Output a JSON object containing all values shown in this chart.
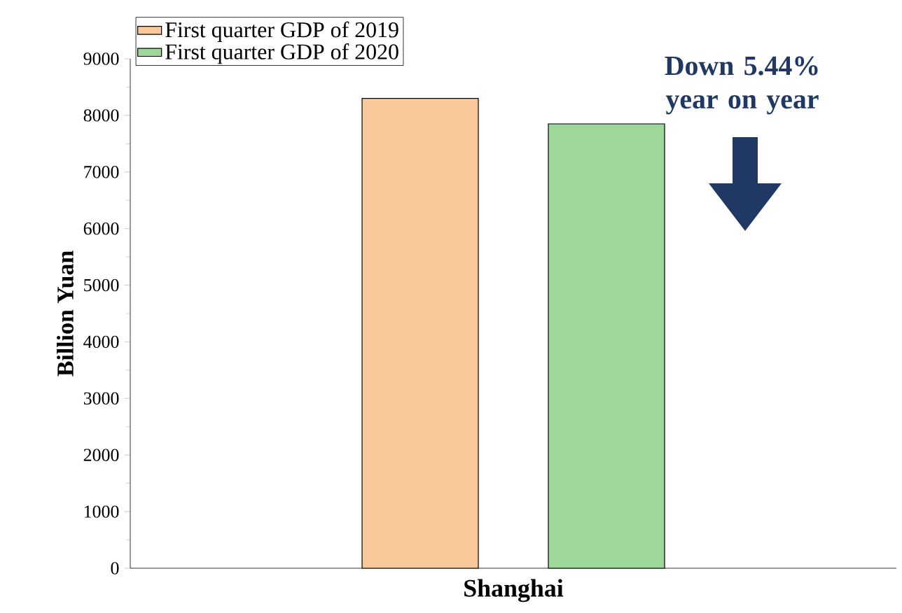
{
  "chart_data": {
    "type": "bar",
    "ylabel": "Billion Yuan",
    "categories": [
      "Shanghai"
    ],
    "series": [
      {
        "name": "First quarter GDP of 2019",
        "color": "#f9c89b",
        "values": [
          8300
        ]
      },
      {
        "name": "First quarter GDP of 2020",
        "color": "#9dd89a",
        "values": [
          7850
        ]
      }
    ],
    "ylim": [
      0,
      9000
    ],
    "yticks": [
      0,
      1000,
      2000,
      3000,
      4000,
      5000,
      6000,
      7000,
      8000,
      9000
    ],
    "legend": "top left",
    "annotations": [
      "Down 5.44% year on year"
    ]
  }
}
